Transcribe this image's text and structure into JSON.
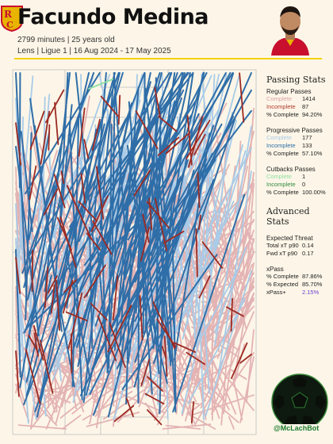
{
  "header": {
    "player_name": "Facundo Medina",
    "meta_line1": "2799 minutes | 25 years old",
    "meta_line2": "Lens | Ligue 1 | 16 Aug 2024 - 17 May 2025"
  },
  "stats": {
    "passing_title": "Passing Stats",
    "regular": {
      "title": "Regular Passes",
      "complete_label": "Complete",
      "complete": "1414",
      "incomplete_label": "Incomplete",
      "incomplete": "87",
      "pct_label": "% Complete",
      "pct": "94.20%"
    },
    "progressive": {
      "title": "Progressive Passes",
      "complete_label": "Complete",
      "complete": "177",
      "incomplete_label": "Incomplete",
      "incomplete": "133",
      "pct_label": "% Complete",
      "pct": "57.10%"
    },
    "cutbacks": {
      "title": "Cutbacks Passes",
      "complete_label": "Complete",
      "complete": "1",
      "incomplete_label": "Incomplete",
      "incomplete": "0",
      "pct_label": "% Complete",
      "pct": "100.00%"
    },
    "advanced_title": "Advanced Stats",
    "xthreat": {
      "title": "Expected Threat",
      "total_label": "Total xT p90",
      "total": "0.14",
      "fwd_label": "Fwd xT p90",
      "fwd": "0.17"
    },
    "xpass": {
      "title": "xPass",
      "complete_label": "% Complete",
      "complete": "87.86%",
      "expected_label": "% Expected",
      "expected": "85.70%",
      "plus_label": "xPass+",
      "plus": "2.15%"
    }
  },
  "branding": {
    "handle": "@McLachBot"
  },
  "colors": {
    "regular_complete": "#e3b3b3",
    "regular_incomplete": "#9c2a22",
    "progressive_complete": "#a8cbe8",
    "progressive_incomplete": "#2f6ea8",
    "cutback_complete": "#8ee0a0",
    "accent": "#f2d200"
  }
}
